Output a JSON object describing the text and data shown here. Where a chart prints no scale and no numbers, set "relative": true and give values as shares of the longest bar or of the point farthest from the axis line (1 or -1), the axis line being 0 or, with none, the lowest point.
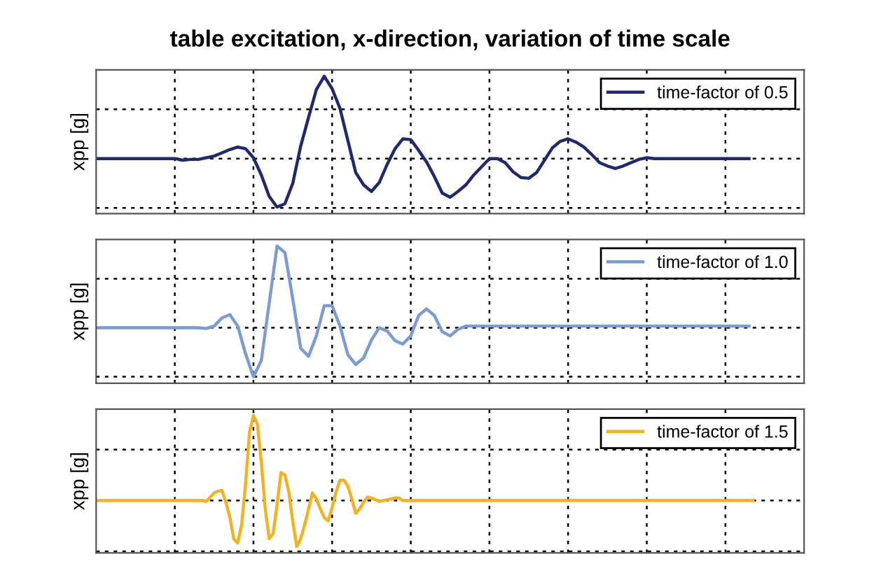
{
  "chart_data": [
    {
      "type": "line",
      "title": "table excitation, x-direction, variation of time scale",
      "ylabel": "xpp [g]",
      "relative": true,
      "tick_labels": false,
      "grid": true,
      "legend": "top right",
      "line_style": "solid",
      "categories": [
        null,
        null,
        null,
        null,
        null,
        null,
        null,
        null,
        null,
        null,
        null,
        null,
        null,
        null,
        null,
        null,
        null,
        null,
        null,
        null,
        null,
        null,
        null,
        null,
        null,
        null,
        null,
        null,
        null,
        null,
        null,
        null,
        null,
        null,
        null,
        null,
        null,
        null,
        null,
        null,
        null,
        null,
        null,
        null,
        null,
        null,
        null,
        null,
        null,
        null,
        null,
        null,
        null,
        null,
        null,
        null,
        null,
        null,
        null,
        null,
        null,
        null,
        null,
        null,
        null,
        null,
        null,
        null,
        null,
        null,
        null,
        null,
        null,
        null,
        null,
        null,
        null,
        null,
        null,
        null,
        null,
        null,
        null,
        null,
        null,
        null,
        null,
        null,
        null,
        null,
        null
      ],
      "series": [
        {
          "name": "time-factor of 0.5",
          "color": "#1f2a6e",
          "values": [
            0,
            0,
            0,
            0,
            0,
            0,
            0,
            0,
            0,
            0,
            0,
            -0.02,
            -0.01,
            -0.01,
            0.01,
            0.03,
            0.07,
            0.11,
            0.14,
            0.12,
            0.01,
            -0.2,
            -0.46,
            -0.59,
            -0.55,
            -0.3,
            0.15,
            0.5,
            0.84,
            1,
            0.85,
            0.61,
            0.22,
            -0.17,
            -0.32,
            -0.4,
            -0.29,
            -0.07,
            0.12,
            0.24,
            0.23,
            0.1,
            -0.04,
            -0.22,
            -0.42,
            -0.47,
            -0.4,
            -0.32,
            -0.2,
            -0.1,
            0,
            0,
            -0.05,
            -0.16,
            -0.23,
            -0.24,
            -0.17,
            -0.02,
            0.13,
            0.21,
            0.24,
            0.2,
            0.14,
            0.05,
            -0.05,
            -0.09,
            -0.12,
            -0.09,
            -0.05,
            -0.01,
            0.01,
            0,
            0,
            0,
            0,
            0,
            0,
            0,
            0,
            0,
            0,
            0,
            0,
            0,
            null,
            null,
            null,
            null,
            null,
            null,
            null
          ]
        }
      ]
    },
    {
      "type": "line",
      "ylabel": "xpp [g]",
      "relative": true,
      "tick_labels": false,
      "grid": true,
      "legend": "top right",
      "line_style": "solid",
      "categories": [
        null,
        null,
        null,
        null,
        null,
        null,
        null,
        null,
        null,
        null,
        null,
        null,
        null,
        null,
        null,
        null,
        null,
        null,
        null,
        null,
        null,
        null,
        null,
        null,
        null,
        null,
        null,
        null,
        null,
        null,
        null,
        null,
        null,
        null,
        null,
        null,
        null,
        null,
        null,
        null,
        null,
        null,
        null,
        null,
        null,
        null,
        null,
        null,
        null,
        null,
        null,
        null,
        null,
        null,
        null,
        null,
        null,
        null,
        null,
        null,
        null,
        null,
        null,
        null,
        null,
        null,
        null,
        null,
        null,
        null,
        null,
        null,
        null,
        null,
        null,
        null,
        null,
        null,
        null,
        null,
        null,
        null,
        null,
        null,
        null,
        null,
        null,
        null,
        null,
        null,
        null
      ],
      "series": [
        {
          "name": "time-factor of 1.0",
          "color": "#7b9bd6",
          "values": [
            0,
            0,
            0,
            0,
            0,
            0,
            0,
            0,
            0,
            0,
            0,
            0,
            0,
            0,
            -0.01,
            0.02,
            0.12,
            0.16,
            0.02,
            -0.32,
            -0.6,
            -0.4,
            0.3,
            1,
            0.92,
            0.35,
            -0.25,
            -0.35,
            -0.1,
            0.27,
            0.27,
            0.02,
            -0.33,
            -0.45,
            -0.37,
            -0.15,
            0,
            -0.04,
            -0.16,
            -0.2,
            -0.1,
            0.15,
            0.23,
            0.15,
            -0.05,
            -0.1,
            -0.02,
            0.02,
            0.02,
            0.02,
            0.02,
            0.02,
            0.02,
            0.02,
            0.02,
            0.02,
            0.02,
            0.02,
            0.02,
            0.02,
            0.02,
            0.02,
            0.02,
            0.02,
            0.02,
            0.02,
            0.02,
            0.02,
            0.02,
            0.02,
            0.02,
            0.02,
            0.02,
            0.02,
            0.02,
            0.02,
            0.02,
            0.02,
            0.02,
            0.02,
            0.02,
            0.02,
            0.02,
            0.02,
            null,
            null,
            null,
            null,
            null,
            null,
            null
          ]
        }
      ]
    },
    {
      "type": "line",
      "ylabel": "xpp [g]",
      "relative": true,
      "tick_labels": false,
      "grid": true,
      "legend": "top right",
      "line_style": "solid",
      "categories": [
        null,
        null,
        null,
        null,
        null,
        null,
        null,
        null,
        null,
        null,
        null,
        null,
        null,
        null,
        null,
        null,
        null,
        null,
        null,
        null,
        null,
        null,
        null,
        null,
        null,
        null,
        null,
        null,
        null,
        null,
        null,
        null,
        null,
        null,
        null,
        null,
        null,
        null,
        null,
        null,
        null,
        null,
        null,
        null,
        null,
        null,
        null,
        null,
        null,
        null,
        null,
        null,
        null,
        null,
        null,
        null,
        null,
        null,
        null,
        null,
        null,
        null,
        null,
        null,
        null,
        null,
        null,
        null,
        null,
        null,
        null,
        null,
        null,
        null,
        null,
        null,
        null,
        null,
        null,
        null,
        null,
        null,
        null,
        null,
        null,
        null,
        null,
        null,
        null,
        null,
        null,
        null,
        null,
        null,
        null,
        null,
        null,
        null,
        null,
        null,
        null,
        null,
        null,
        null,
        null,
        null,
        null,
        null,
        null,
        null,
        null,
        null,
        null,
        null,
        null,
        null,
        null,
        null,
        null,
        null,
        null,
        null,
        null,
        null,
        null,
        null,
        null,
        null,
        null,
        null,
        null,
        null,
        null,
        null,
        null,
        null,
        null,
        null,
        null,
        null,
        null,
        null,
        null,
        null,
        null,
        null,
        null,
        null,
        null,
        null,
        null,
        null,
        null,
        null,
        null,
        null,
        null,
        null,
        null,
        null,
        null,
        null,
        null,
        null,
        null,
        null,
        null,
        null,
        null,
        null,
        null,
        null,
        null,
        null,
        null,
        null,
        null,
        null,
        null,
        null,
        null
      ],
      "series": [
        {
          "name": "time-factor of 1.5",
          "color": "#f5b120",
          "values": [
            0,
            0,
            0,
            0,
            0,
            0,
            0,
            0,
            0,
            0,
            0,
            0,
            0,
            0,
            0,
            0,
            0,
            0,
            0,
            0,
            0,
            0,
            0,
            0,
            0,
            0,
            0,
            0,
            -0.01,
            0.04,
            0.09,
            0.11,
            0.12,
            -0.02,
            -0.2,
            -0.45,
            -0.5,
            -0.28,
            0.2,
            0.81,
            1,
            0.9,
            0.45,
            -0.1,
            -0.45,
            -0.39,
            -0.05,
            0.33,
            0.3,
            0.1,
            -0.25,
            -0.54,
            -0.45,
            -0.29,
            -0.1,
            0.09,
            0.02,
            -0.1,
            -0.2,
            -0.24,
            -0.08,
            0.1,
            0.24,
            0.24,
            0.17,
            0.02,
            -0.15,
            -0.1,
            -0.02,
            0.04,
            0.03,
            0.01,
            -0.01,
            0,
            0.01,
            0.02,
            0.03,
            0.03,
            0,
            0,
            0,
            0,
            0,
            0,
            0,
            0,
            0,
            0,
            0,
            0,
            0,
            0,
            0,
            0,
            0,
            0,
            0,
            0,
            0,
            0,
            0,
            0,
            0,
            0,
            0,
            0,
            0,
            0,
            0,
            0,
            0,
            0,
            0,
            0,
            0,
            0,
            0,
            0,
            0,
            0,
            0,
            0,
            0,
            0,
            0,
            0,
            0,
            0,
            0,
            0,
            0,
            0,
            0,
            0,
            0,
            0,
            0,
            0,
            0,
            0,
            0,
            0,
            0,
            0,
            0,
            0,
            0,
            0,
            0,
            0,
            0,
            0,
            0,
            0,
            0,
            0,
            0,
            0,
            0,
            0,
            0,
            0,
            0,
            0,
            0,
            0,
            0,
            0,
            null,
            null,
            null,
            null,
            null,
            null,
            null,
            null,
            null,
            null,
            null,
            null,
            null
          ]
        }
      ]
    }
  ]
}
